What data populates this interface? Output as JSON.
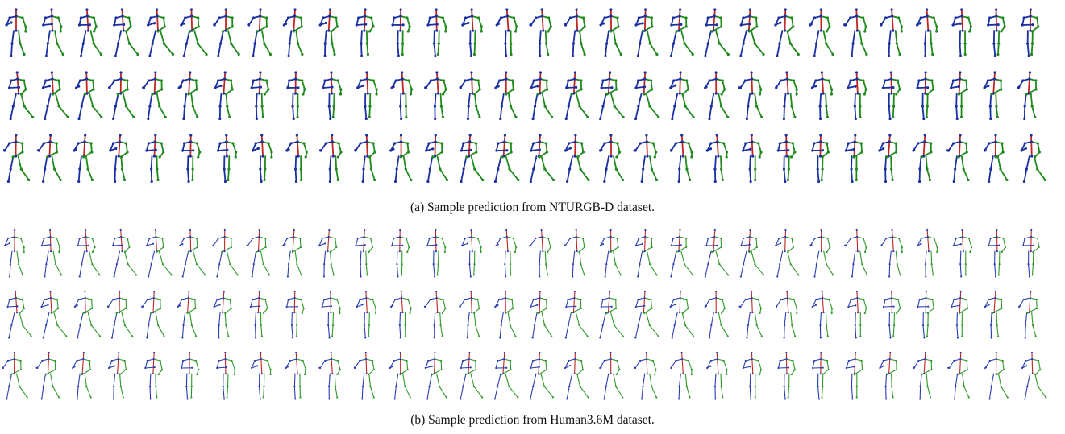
{
  "figure": {
    "panels": [
      {
        "id": "a",
        "caption": "(a) Sample prediction from NTURGB-D dataset.",
        "rows": 3,
        "frames_per_row": 30,
        "colors": {
          "spine": "#c0261e",
          "left": "#1a2fa0",
          "right": "#1f8a1c"
        }
      },
      {
        "id": "b",
        "caption": "(b) Sample prediction from Human3.6M dataset.",
        "rows": 3,
        "frames_per_row": 30,
        "colors": {
          "spine": "#c0261e",
          "left": "#2b3eb0",
          "right": "#2f9a2a"
        }
      }
    ]
  }
}
